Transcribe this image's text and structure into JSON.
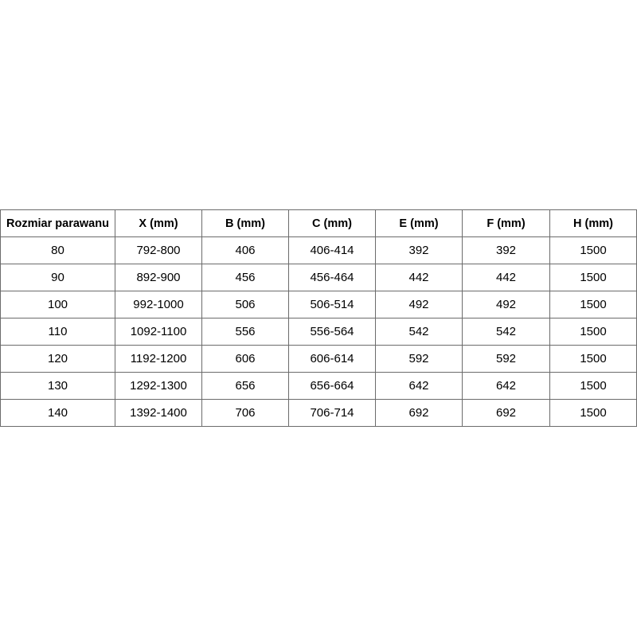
{
  "table": {
    "headers": [
      "Rozmiar parawanu",
      "X (mm)",
      "B (mm)",
      "C (mm)",
      "E (mm)",
      "F (mm)",
      "H (mm)"
    ],
    "rows": [
      [
        "80",
        "792-800",
        "406",
        "406-414",
        "392",
        "392",
        "1500"
      ],
      [
        "90",
        "892-900",
        "456",
        "456-464",
        "442",
        "442",
        "1500"
      ],
      [
        "100",
        "992-1000",
        "506",
        "506-514",
        "492",
        "492",
        "1500"
      ],
      [
        "110",
        "1092-1100",
        "556",
        "556-564",
        "542",
        "542",
        "1500"
      ],
      [
        "120",
        "1192-1200",
        "606",
        "606-614",
        "592",
        "592",
        "1500"
      ],
      [
        "130",
        "1292-1300",
        "656",
        "656-664",
        "642",
        "642",
        "1500"
      ],
      [
        "140",
        "1392-1400",
        "706",
        "706-714",
        "692",
        "692",
        "1500"
      ]
    ]
  }
}
